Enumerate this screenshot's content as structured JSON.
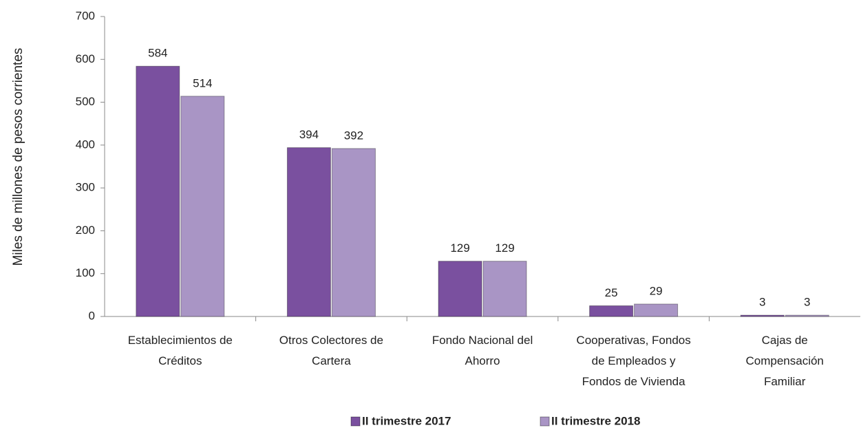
{
  "chart_data": {
    "type": "bar",
    "y_label": "Miles de millones de pesos corrientes",
    "categories": [
      [
        "Establecimientos de",
        "Créditos"
      ],
      [
        "Otros Colectores de",
        "Cartera"
      ],
      [
        "Fondo Nacional del",
        "Ahorro"
      ],
      [
        "Cooperativas, Fondos",
        "de Empleados y",
        "Fondos de Vivienda"
      ],
      [
        "Cajas de",
        "Compensación",
        "Familiar"
      ]
    ],
    "series": [
      {
        "name": "II trimestre 2017",
        "color": "#7a509f",
        "values": [
          584,
          394,
          129,
          25,
          3
        ]
      },
      {
        "name": "II trimestre 2018",
        "color": "#a995c5",
        "values": [
          514,
          392,
          129,
          29,
          3
        ]
      }
    ],
    "ylim": [
      0,
      700
    ],
    "yticks": [
      0,
      100,
      200,
      300,
      400,
      500,
      600,
      700
    ],
    "legend": "bottom"
  }
}
